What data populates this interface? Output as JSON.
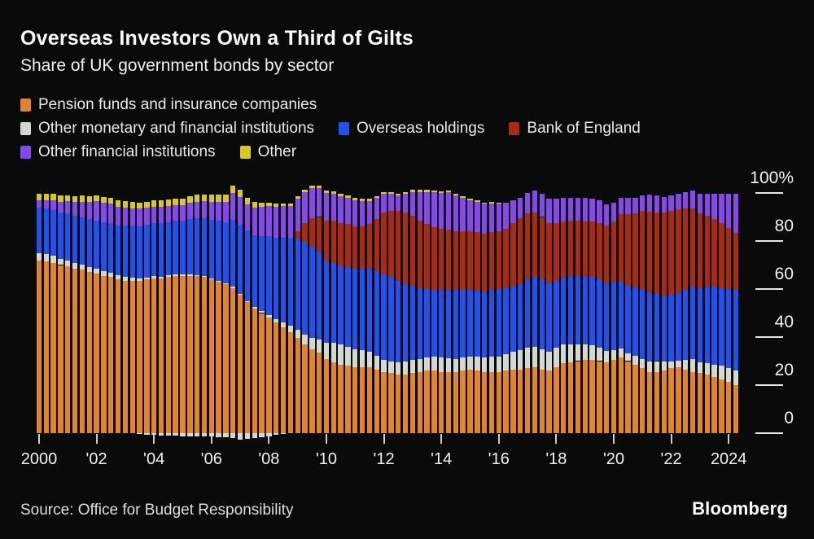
{
  "header": {
    "title": "Overseas Investors Own a Third of Gilts",
    "subtitle": "Share of UK government bonds by sector"
  },
  "legend": {
    "items": [
      {
        "label": "Pension funds and insurance companies",
        "color": "#e08528"
      },
      {
        "label": "Other monetary and financial institutions",
        "color": "#d3d8d3"
      },
      {
        "label": "Overseas holdings",
        "color": "#2151ef"
      },
      {
        "label": "Bank of England",
        "color": "#a72c13"
      },
      {
        "label": "Other financial institutions",
        "color": "#8549ea"
      },
      {
        "label": "Other",
        "color": "#d4cb1d"
      }
    ]
  },
  "chart_data": {
    "type": "bar",
    "variant": "stacked-quarterly",
    "unit": "%",
    "quarters_start": "2000 Q1",
    "quarters_end": "2024 Q2",
    "quarter_count": 98,
    "ylim": [
      0,
      100
    ],
    "y_ticks": [
      {
        "label": "100%",
        "value": 100
      },
      {
        "label": "80",
        "value": 80
      },
      {
        "label": "60",
        "value": 60
      },
      {
        "label": "40",
        "value": 40
      },
      {
        "label": "20",
        "value": 20
      },
      {
        "label": "0",
        "value": 0
      }
    ],
    "x_tick_labels": [
      "2000",
      "'02",
      "'04",
      "'06",
      "'08",
      "'10",
      "'12",
      "'14",
      "'16",
      "'18",
      "'20",
      "'22",
      "2024"
    ],
    "series": [
      {
        "name": "Pension funds and insurance companies",
        "slug": "pension",
        "color": "#e08528",
        "values": [
          72,
          71.5,
          71,
          70,
          69.5,
          68.5,
          68,
          67,
          66.5,
          65.5,
          65,
          64,
          63.5,
          63.5,
          63.5,
          64,
          64.5,
          64.5,
          65,
          65.5,
          65.5,
          65.5,
          65.5,
          65,
          64,
          63,
          62,
          60.5,
          57.5,
          54.5,
          52,
          50,
          48,
          46,
          44,
          42,
          39.5,
          37,
          35,
          33.5,
          31,
          29.5,
          28.5,
          28,
          27.5,
          27.5,
          27.5,
          26.5,
          25.5,
          25,
          24.5,
          24.5,
          25,
          25.5,
          26,
          26,
          25.5,
          25.5,
          25.5,
          26,
          26.5,
          26,
          25.5,
          25.5,
          25.5,
          26,
          26.5,
          26.5,
          27,
          27.5,
          26.5,
          26,
          27.5,
          29,
          29.5,
          30,
          30.5,
          30.5,
          30,
          29.5,
          30.5,
          31.5,
          30,
          28.5,
          27,
          25.5,
          25.5,
          26,
          27,
          27.5,
          26.5,
          25.5,
          25,
          24.5,
          23.5,
          22.5,
          21.5,
          20
        ]
      },
      {
        "name": "Other monetary and financial institutions",
        "slug": "monetary",
        "color": "#d3d8d3",
        "values": [
          3,
          3,
          2.8,
          2.6,
          2.5,
          2.4,
          2.2,
          2.1,
          2,
          1.9,
          1.8,
          1.6,
          1.5,
          1.2,
          1,
          0.9,
          0.8,
          0.7,
          0.6,
          0.5,
          0.5,
          0.5,
          0.4,
          0.4,
          0.4,
          0.4,
          0.4,
          0.4,
          0.4,
          0.4,
          0.5,
          0.7,
          1,
          1.5,
          2,
          2.8,
          3.5,
          4,
          4.5,
          5.5,
          6.5,
          8,
          8.5,
          8,
          7.5,
          7,
          6.5,
          5.8,
          5,
          5,
          5,
          5.2,
          5.5,
          5.5,
          5.5,
          5.8,
          6,
          5.8,
          5.5,
          5.5,
          5.5,
          5.8,
          6,
          6.2,
          6.5,
          7,
          7.5,
          8,
          8.5,
          8.5,
          8.5,
          8,
          8,
          7.8,
          7.5,
          7,
          6.5,
          6,
          5.5,
          4.8,
          4,
          3.6,
          3.3,
          3.6,
          4,
          4.3,
          4.5,
          3.8,
          3,
          2.8,
          4,
          5.5,
          4.5,
          4.5,
          5,
          5.5,
          5.5,
          6
        ]
      },
      {
        "name": "Overseas holdings",
        "slug": "overseas",
        "color": "#2151ef",
        "values": [
          19,
          19,
          19.2,
          19.3,
          19.5,
          19.6,
          19.7,
          19.9,
          20,
          20.4,
          20.7,
          21,
          21.5,
          21.6,
          21.7,
          21.9,
          22,
          22.1,
          22.2,
          22.4,
          22.5,
          23,
          23.5,
          24,
          24.5,
          25,
          25.5,
          28,
          29,
          29.5,
          30,
          31.5,
          33,
          34,
          35.5,
          36.5,
          38,
          38.5,
          38,
          36.5,
          34.5,
          33.5,
          32.5,
          33,
          33.5,
          34,
          34.5,
          35,
          35.5,
          35,
          34,
          32.5,
          31,
          29.5,
          28.5,
          28,
          28,
          28.5,
          28.5,
          28,
          27.5,
          27.5,
          27.5,
          28,
          28,
          27.5,
          27,
          27.5,
          28.5,
          29,
          29,
          28.5,
          28,
          28,
          28.5,
          28.5,
          28,
          28.5,
          28.5,
          28,
          28.5,
          28,
          28,
          28.5,
          29,
          29,
          28,
          27.5,
          27.5,
          28,
          29,
          30,
          31,
          32,
          32.5,
          32.5,
          33,
          33.5
        ]
      },
      {
        "name": "Bank of England",
        "slug": "boe",
        "color": "#a72c13",
        "values": [
          0,
          0,
          0,
          0,
          0,
          0,
          0,
          0,
          0,
          0,
          0,
          0,
          0,
          0,
          0,
          0,
          0,
          0,
          0,
          0,
          0,
          0,
          0,
          0,
          0,
          0,
          0,
          0,
          0,
          0,
          0,
          0,
          0,
          0,
          0,
          0,
          3,
          8,
          12,
          14.5,
          16.5,
          17.5,
          18,
          18,
          17.5,
          17.5,
          18.5,
          22,
          26,
          27.5,
          29,
          29.5,
          29,
          28,
          27,
          26,
          25.5,
          25,
          24.5,
          24.5,
          24.5,
          24.5,
          24,
          24,
          24,
          24.5,
          26.5,
          27.5,
          27.5,
          27,
          26,
          25,
          24,
          23.5,
          23,
          23,
          23,
          23,
          23.5,
          24,
          25,
          28,
          30,
          31,
          32.5,
          33.5,
          34,
          34.5,
          35,
          35,
          34,
          32.5,
          31,
          29.5,
          28,
          27,
          25.5,
          24
        ]
      },
      {
        "name": "Other financial institutions",
        "slug": "ofi",
        "color": "#8549ea",
        "values": [
          3,
          3.5,
          4,
          4.5,
          5,
          5.8,
          6.5,
          7.2,
          8,
          8,
          8,
          7.8,
          7.5,
          7.4,
          7.3,
          7.1,
          7,
          6.9,
          6.8,
          6.6,
          6.5,
          6.8,
          7,
          7.2,
          7.5,
          8,
          8.5,
          11,
          11.5,
          11,
          11.5,
          12,
          12.5,
          12.8,
          13,
          13.2,
          13.5,
          13,
          12.5,
          12,
          11.5,
          11.2,
          11,
          11,
          11,
          10.5,
          9.5,
          8.5,
          7.5,
          7,
          6.5,
          8,
          10,
          12,
          13.5,
          14.5,
          15,
          15.5,
          15,
          14,
          13,
          12.5,
          12.5,
          12,
          11.5,
          11,
          9.5,
          8.5,
          8.5,
          9,
          9.5,
          10,
          10,
          9.5,
          9.5,
          9.5,
          10,
          9.5,
          9.5,
          9,
          8,
          7,
          6.5,
          6.5,
          6.5,
          7,
          7,
          6.5,
          6.5,
          6.5,
          7,
          7.5,
          8,
          9,
          10.5,
          12,
          14,
          16
        ]
      },
      {
        "name": "Other",
        "slug": "other",
        "color": "#d4cb1d",
        "values": [
          2.5,
          2.5,
          2.5,
          2.5,
          2.5,
          2.5,
          2.5,
          2.5,
          2.5,
          2.5,
          2.5,
          2.5,
          2.5,
          2.5,
          2.5,
          2.5,
          2.5,
          2.6,
          2.6,
          2.7,
          2.7,
          2.7,
          2.8,
          2.8,
          2.8,
          2.9,
          2.9,
          3,
          3,
          2.6,
          2.2,
          1.8,
          1.5,
          1.3,
          1.2,
          1.1,
          1,
          1,
          1,
          1,
          1,
          1,
          1,
          1,
          1,
          1,
          1,
          0.9,
          0.8,
          0.8,
          0.8,
          0.8,
          0.8,
          0.8,
          0.8,
          0.8,
          0.8,
          0.8,
          0.7,
          0.7,
          0.7,
          0.6,
          0.6,
          0.5,
          0.4,
          0,
          0,
          0,
          0,
          0,
          0,
          0,
          0,
          0,
          0,
          0,
          0,
          0,
          0,
          0,
          0,
          0,
          0,
          0,
          0,
          0,
          0,
          0,
          0,
          0,
          0,
          0,
          0,
          0,
          0,
          0,
          0,
          0
        ]
      }
    ],
    "below_zero": {
      "series_name": "Other monetary and financial institutions",
      "values": [
        0,
        0,
        0,
        0,
        0,
        0,
        0,
        0,
        0,
        0,
        0,
        0,
        0,
        0,
        -0.5,
        -0.6,
        -0.8,
        -0.9,
        -1,
        -1.1,
        -1.2,
        -1.2,
        -1.3,
        -1.4,
        -1.5,
        -1.6,
        -1.8,
        -2.2,
        -2.8,
        -2.5,
        -2.2,
        -1.8,
        -1.2,
        -0.8,
        -0.5,
        0,
        0,
        0,
        0,
        0,
        0,
        0,
        0,
        0,
        0,
        0,
        0,
        0,
        0,
        0,
        0,
        0,
        0,
        0,
        0,
        0,
        0,
        0,
        0,
        0,
        0,
        0,
        0,
        0,
        0,
        0,
        0,
        0,
        0,
        0,
        0,
        0,
        0,
        0,
        0,
        0,
        0,
        0,
        0,
        0,
        0,
        0,
        0,
        0,
        0,
        0,
        0,
        0,
        0,
        0,
        0,
        0,
        0,
        0,
        0,
        0,
        0,
        0
      ]
    }
  },
  "footer": {
    "source": "Source: Office for Budget Responsibility",
    "brand": "Bloomberg"
  }
}
